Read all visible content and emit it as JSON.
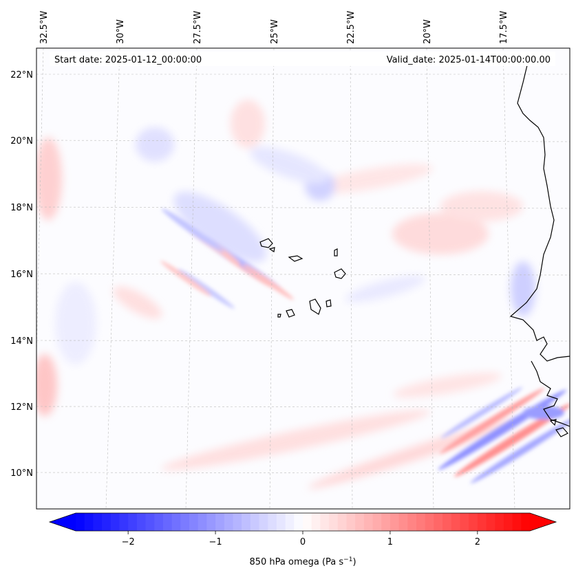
{
  "map": {
    "start_label": "Start date: 2025-01-12_00:00:00",
    "valid_label": "Valid_date: 2025-01-14T00:00:00.00",
    "lon_labels": [
      "32.5°W",
      "30°W",
      "27.5°W",
      "25°W",
      "22.5°W",
      "20°W",
      "17.5°W"
    ],
    "lat_labels": [
      "22°N",
      "20°N",
      "18°N",
      "16°N",
      "14°N",
      "12°N",
      "10°N"
    ],
    "field": "850 hPa omega",
    "coastline_color": "#000000",
    "gridline_color": "#bbbbbb"
  },
  "colorbar": {
    "label_main": "850 hPa omega (Pa s",
    "label_exp": "−1",
    "label_close": ")",
    "ticks": [
      "−2",
      "−1",
      "0",
      "1",
      "2"
    ],
    "tick_values": [
      -2,
      -1,
      0,
      1,
      2
    ],
    "range": [
      -2.6,
      2.6
    ],
    "extend": "both",
    "cmap": "bwr",
    "color_min": "#0000ff",
    "color_mid": "#ffffff",
    "color_max": "#ff0000"
  }
}
